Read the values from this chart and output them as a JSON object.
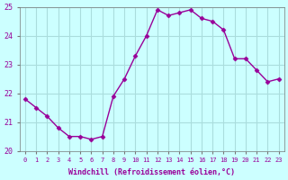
{
  "x": [
    0,
    1,
    2,
    3,
    4,
    5,
    6,
    7,
    8,
    9,
    10,
    11,
    12,
    13,
    14,
    15,
    16,
    17,
    18,
    19,
    20,
    21,
    22,
    23
  ],
  "y": [
    21.8,
    21.5,
    21.2,
    20.8,
    20.5,
    20.5,
    20.4,
    20.5,
    21.9,
    22.5,
    23.3,
    24.0,
    24.9,
    24.7,
    24.8,
    24.9,
    24.6,
    24.5,
    24.2,
    23.2,
    23.2,
    22.8,
    22.4,
    22.5
  ],
  "line_color": "#990099",
  "marker_color": "#990099",
  "bg_color": "#ccffff",
  "grid_color": "#aadddd",
  "axis_color": "#990099",
  "xlabel": "Windchill (Refroidissement éolien,°C)",
  "ylim": [
    20,
    25
  ],
  "xlim_min": -0.5,
  "xlim_max": 23.5,
  "yticks": [
    20,
    21,
    22,
    23,
    24,
    25
  ],
  "xticks": [
    0,
    1,
    2,
    3,
    4,
    5,
    6,
    7,
    8,
    9,
    10,
    11,
    12,
    13,
    14,
    15,
    16,
    17,
    18,
    19,
    20,
    21,
    22,
    23
  ]
}
